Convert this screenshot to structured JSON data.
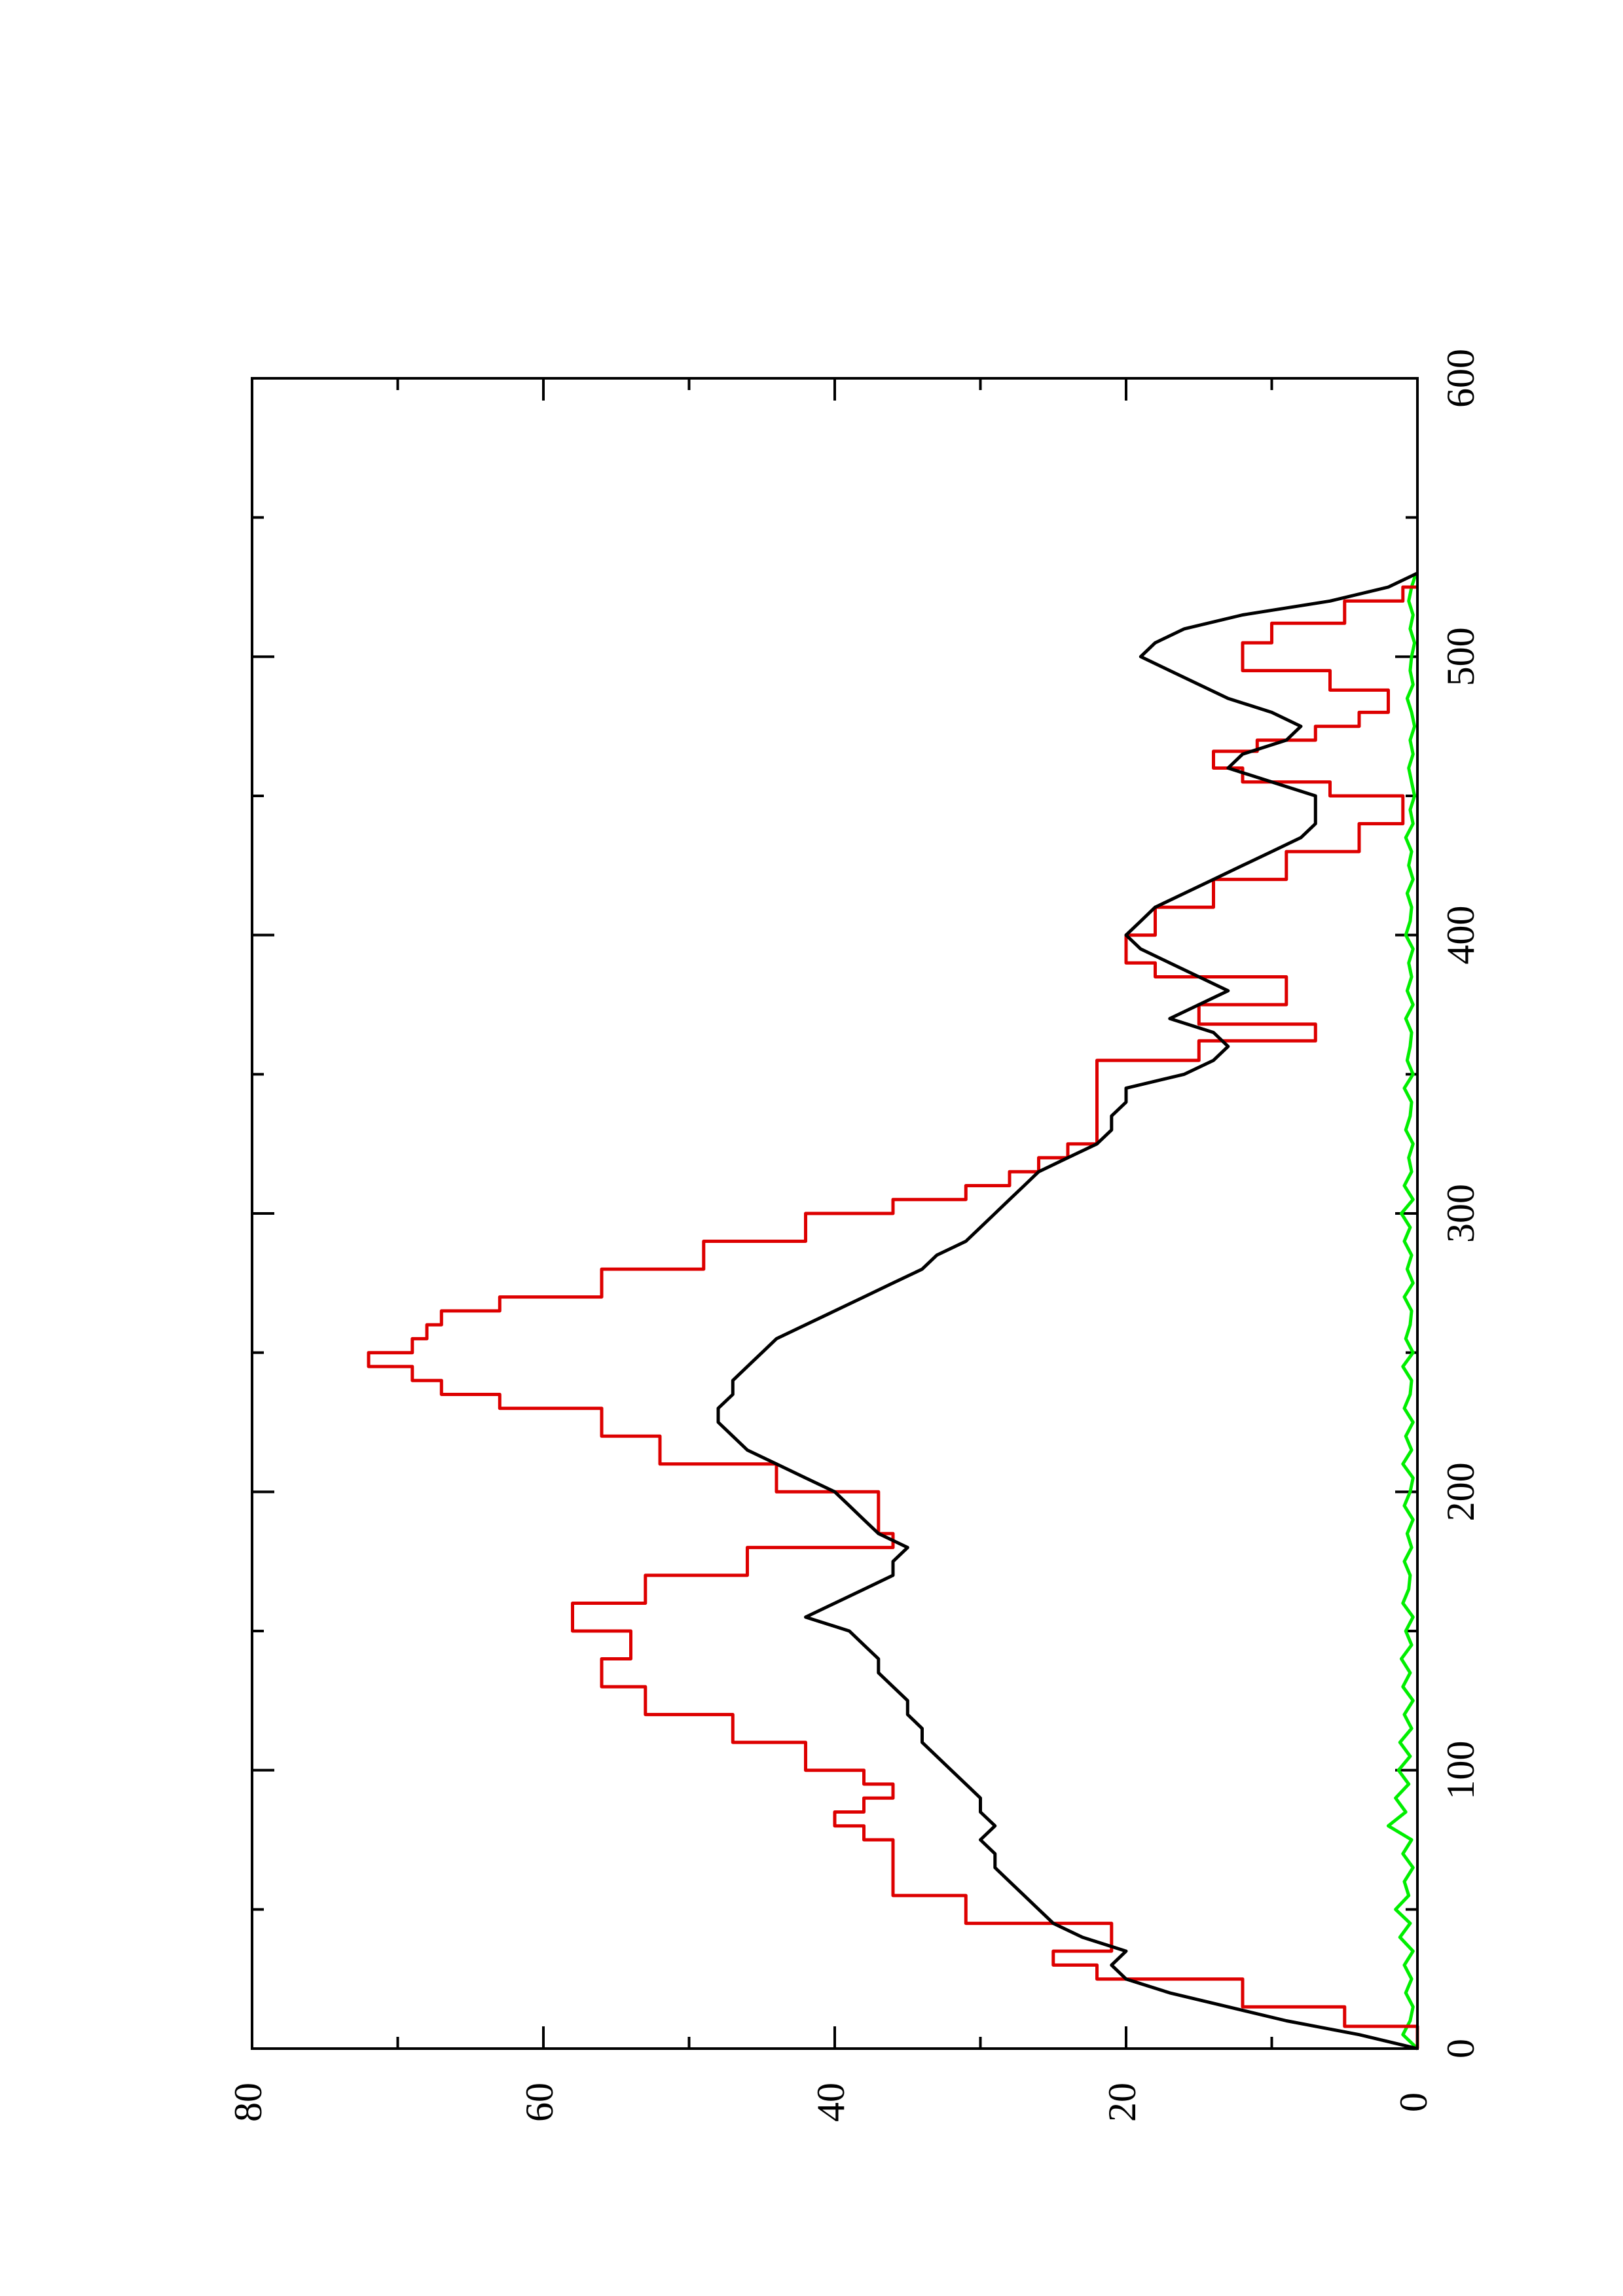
{
  "chart_data": {
    "type": "line",
    "title": "",
    "xlabel": "",
    "ylabel": "",
    "xlim": [
      0,
      600
    ],
    "ylim": [
      0,
      80
    ],
    "x_ticks": [
      0,
      100,
      200,
      300,
      400,
      500,
      600
    ],
    "y_ticks": [
      0,
      20,
      40,
      60,
      80
    ],
    "x_tick_labels": [
      "0",
      "100",
      "200",
      "300",
      "400",
      "500",
      "600"
    ],
    "y_tick_labels": [
      "0",
      "20",
      "40",
      "60",
      "80"
    ],
    "x_minor_ticks": [
      50,
      150,
      250,
      350,
      450,
      550
    ],
    "y_minor_ticks": [
      10,
      30,
      50,
      70
    ],
    "grid": false,
    "legend": "none",
    "orientation": "rotated 90° counter-clockwise",
    "series": [
      {
        "color": "#000000",
        "step": false,
        "points": [
          [
            0,
            0
          ],
          [
            5,
            4
          ],
          [
            10,
            9
          ],
          [
            15,
            13
          ],
          [
            20,
            17
          ],
          [
            25,
            20
          ],
          [
            30,
            21
          ],
          [
            35,
            20
          ],
          [
            40,
            23
          ],
          [
            45,
            25
          ],
          [
            50,
            26
          ],
          [
            55,
            27
          ],
          [
            60,
            28
          ],
          [
            65,
            29
          ],
          [
            70,
            29
          ],
          [
            75,
            30
          ],
          [
            80,
            29
          ],
          [
            85,
            30
          ],
          [
            90,
            30
          ],
          [
            95,
            31
          ],
          [
            100,
            32
          ],
          [
            105,
            33
          ],
          [
            110,
            34
          ],
          [
            115,
            34
          ],
          [
            120,
            35
          ],
          [
            125,
            35
          ],
          [
            130,
            36
          ],
          [
            135,
            37
          ],
          [
            140,
            37
          ],
          [
            145,
            38
          ],
          [
            150,
            39
          ],
          [
            155,
            42
          ],
          [
            160,
            40
          ],
          [
            165,
            38
          ],
          [
            170,
            36
          ],
          [
            175,
            36
          ],
          [
            180,
            35
          ],
          [
            185,
            37
          ],
          [
            190,
            38
          ],
          [
            195,
            39
          ],
          [
            200,
            40
          ],
          [
            205,
            42
          ],
          [
            210,
            44
          ],
          [
            215,
            46
          ],
          [
            220,
            47
          ],
          [
            225,
            48
          ],
          [
            230,
            48
          ],
          [
            235,
            47
          ],
          [
            240,
            47
          ],
          [
            245,
            46
          ],
          [
            250,
            45
          ],
          [
            255,
            44
          ],
          [
            260,
            42
          ],
          [
            265,
            40
          ],
          [
            270,
            38
          ],
          [
            275,
            36
          ],
          [
            280,
            34
          ],
          [
            285,
            33
          ],
          [
            290,
            31
          ],
          [
            295,
            30
          ],
          [
            300,
            29
          ],
          [
            305,
            28
          ],
          [
            310,
            27
          ],
          [
            315,
            26
          ],
          [
            320,
            24
          ],
          [
            325,
            22
          ],
          [
            330,
            21
          ],
          [
            335,
            21
          ],
          [
            340,
            20
          ],
          [
            345,
            20
          ],
          [
            350,
            16
          ],
          [
            355,
            14
          ],
          [
            360,
            13
          ],
          [
            365,
            14
          ],
          [
            370,
            17
          ],
          [
            375,
            15
          ],
          [
            380,
            13
          ],
          [
            385,
            15
          ],
          [
            390,
            17
          ],
          [
            395,
            19
          ],
          [
            400,
            20
          ],
          [
            405,
            19
          ],
          [
            410,
            18
          ],
          [
            415,
            16
          ],
          [
            420,
            14
          ],
          [
            425,
            12
          ],
          [
            430,
            10
          ],
          [
            435,
            8
          ],
          [
            440,
            7
          ],
          [
            445,
            7
          ],
          [
            450,
            7
          ],
          [
            455,
            10
          ],
          [
            460,
            13
          ],
          [
            465,
            12
          ],
          [
            470,
            9
          ],
          [
            475,
            8
          ],
          [
            480,
            10
          ],
          [
            485,
            13
          ],
          [
            490,
            15
          ],
          [
            495,
            17
          ],
          [
            500,
            19
          ],
          [
            505,
            18
          ],
          [
            510,
            16
          ],
          [
            515,
            12
          ],
          [
            520,
            6
          ],
          [
            525,
            2
          ],
          [
            530,
            0
          ]
        ]
      },
      {
        "color": "#dd0000",
        "step": true,
        "points": [
          [
            0,
            0
          ],
          [
            8,
            5
          ],
          [
            15,
            12
          ],
          [
            25,
            22
          ],
          [
            30,
            25
          ],
          [
            35,
            21
          ],
          [
            45,
            31
          ],
          [
            55,
            36
          ],
          [
            60,
            36
          ],
          [
            75,
            38
          ],
          [
            80,
            40
          ],
          [
            85,
            38
          ],
          [
            90,
            36
          ],
          [
            95,
            38
          ],
          [
            100,
            42
          ],
          [
            110,
            47
          ],
          [
            120,
            53
          ],
          [
            130,
            56
          ],
          [
            140,
            54
          ],
          [
            150,
            58
          ],
          [
            160,
            53
          ],
          [
            170,
            46
          ],
          [
            180,
            36
          ],
          [
            185,
            37
          ],
          [
            200,
            44
          ],
          [
            210,
            52
          ],
          [
            220,
            56
          ],
          [
            230,
            63
          ],
          [
            235,
            67
          ],
          [
            240,
            69
          ],
          [
            245,
            72
          ],
          [
            250,
            69
          ],
          [
            255,
            68
          ],
          [
            260,
            67
          ],
          [
            265,
            63
          ],
          [
            270,
            56
          ],
          [
            280,
            49
          ],
          [
            290,
            42
          ],
          [
            300,
            36
          ],
          [
            305,
            31
          ],
          [
            310,
            28
          ],
          [
            315,
            26
          ],
          [
            320,
            24
          ],
          [
            325,
            22
          ],
          [
            345,
            22
          ],
          [
            355,
            15
          ],
          [
            362,
            7
          ],
          [
            368,
            15
          ],
          [
            375,
            9
          ],
          [
            385,
            18
          ],
          [
            390,
            20
          ],
          [
            400,
            18
          ],
          [
            410,
            14
          ],
          [
            420,
            9
          ],
          [
            430,
            4
          ],
          [
            440,
            1
          ],
          [
            450,
            6
          ],
          [
            455,
            12
          ],
          [
            460,
            14
          ],
          [
            466,
            11
          ],
          [
            470,
            7
          ],
          [
            475,
            4
          ],
          [
            480,
            2
          ],
          [
            488,
            6
          ],
          [
            495,
            12
          ],
          [
            500,
            12
          ],
          [
            505,
            10
          ],
          [
            512,
            5
          ],
          [
            520,
            1
          ],
          [
            525,
            0
          ]
        ]
      },
      {
        "color": "#00ee00",
        "step": false,
        "points": [
          [
            0,
            0
          ],
          [
            5,
            1
          ],
          [
            10,
            0.5
          ],
          [
            15,
            0.3
          ],
          [
            20,
            0.8
          ],
          [
            25,
            0.4
          ],
          [
            30,
            0.9
          ],
          [
            35,
            0.3
          ],
          [
            40,
            1.2
          ],
          [
            45,
            0.5
          ],
          [
            50,
            1.5
          ],
          [
            55,
            0.6
          ],
          [
            60,
            0.9
          ],
          [
            65,
            0.3
          ],
          [
            70,
            1.0
          ],
          [
            75,
            0.4
          ],
          [
            80,
            2.0
          ],
          [
            85,
            0.8
          ],
          [
            90,
            1.5
          ],
          [
            95,
            0.6
          ],
          [
            100,
            1.3
          ],
          [
            105,
            0.5
          ],
          [
            110,
            1.2
          ],
          [
            115,
            0.4
          ],
          [
            120,
            0.9
          ],
          [
            125,
            0.3
          ],
          [
            130,
            1.0
          ],
          [
            135,
            0.5
          ],
          [
            140,
            1.1
          ],
          [
            145,
            0.4
          ],
          [
            150,
            0.8
          ],
          [
            155,
            0.3
          ],
          [
            160,
            1.0
          ],
          [
            165,
            0.6
          ],
          [
            170,
            0.5
          ],
          [
            175,
            0.9
          ],
          [
            180,
            0.4
          ],
          [
            185,
            0.7
          ],
          [
            190,
            0.3
          ],
          [
            195,
            0.9
          ],
          [
            200,
            0.5
          ],
          [
            205,
            0.3
          ],
          [
            210,
            1.0
          ],
          [
            215,
            0.4
          ],
          [
            220,
            0.8
          ],
          [
            225,
            0.3
          ],
          [
            230,
            0.9
          ],
          [
            235,
            0.5
          ],
          [
            240,
            0.4
          ],
          [
            245,
            1.0
          ],
          [
            250,
            0.3
          ],
          [
            255,
            0.8
          ],
          [
            260,
            0.5
          ],
          [
            265,
            0.4
          ],
          [
            270,
            0.9
          ],
          [
            275,
            0.3
          ],
          [
            280,
            0.7
          ],
          [
            285,
            0.4
          ],
          [
            290,
            0.9
          ],
          [
            295,
            0.5
          ],
          [
            300,
            1.1
          ],
          [
            305,
            0.3
          ],
          [
            310,
            0.9
          ],
          [
            315,
            0.4
          ],
          [
            320,
            0.6
          ],
          [
            325,
            0.3
          ],
          [
            330,
            0.8
          ],
          [
            335,
            0.5
          ],
          [
            340,
            0.4
          ],
          [
            345,
            0.9
          ],
          [
            350,
            0.3
          ],
          [
            355,
            0.7
          ],
          [
            360,
            0.5
          ],
          [
            365,
            0.4
          ],
          [
            370,
            0.8
          ],
          [
            375,
            0.3
          ],
          [
            380,
            0.7
          ],
          [
            385,
            0.4
          ],
          [
            390,
            0.6
          ],
          [
            395,
            0.3
          ],
          [
            400,
            0.8
          ],
          [
            405,
            0.5
          ],
          [
            410,
            0.4
          ],
          [
            415,
            0.7
          ],
          [
            420,
            0.3
          ],
          [
            425,
            0.6
          ],
          [
            430,
            0.4
          ],
          [
            435,
            0.8
          ],
          [
            440,
            0.3
          ],
          [
            445,
            0.5
          ],
          [
            450,
            0.2
          ],
          [
            455,
            0.4
          ],
          [
            460,
            0.6
          ],
          [
            465,
            0.3
          ],
          [
            470,
            0.5
          ],
          [
            475,
            0.2
          ],
          [
            480,
            0.4
          ],
          [
            485,
            0.7
          ],
          [
            490,
            0.3
          ],
          [
            495,
            0.5
          ],
          [
            500,
            0.4
          ],
          [
            505,
            0.2
          ],
          [
            510,
            0.5
          ],
          [
            515,
            0.3
          ],
          [
            520,
            0.6
          ],
          [
            525,
            0.4
          ],
          [
            530,
            0.1
          ]
        ]
      }
    ]
  }
}
